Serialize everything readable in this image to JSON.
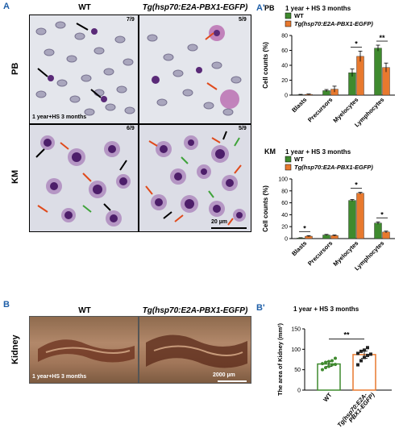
{
  "panel_a": {
    "label": "A",
    "col_wt": "WT",
    "col_tg": "Tg(hsp70:E2A-PBX1-EGFP)",
    "row_pb": "PB",
    "row_km": "KM",
    "frac_pb_wt": "7/9",
    "frac_pb_tg": "5/9",
    "frac_km_wt": "6/9",
    "frac_km_tg": "5/9",
    "condition": "1 year+HS 3 months",
    "scale": "20 µm"
  },
  "panel_b": {
    "label": "B",
    "col_wt": "WT",
    "col_tg": "Tg(hsp70:E2A-PBX1-EGFP)",
    "row": "Kidney",
    "condition": "1 year+HS 3 months",
    "scale": "2000 µm"
  },
  "chart_data": [
    {
      "panel": "A'",
      "label": "A'",
      "type": "bar",
      "tag": "PB",
      "title": "1 year + HS 3 months",
      "ylabel": "Cell counts (%)",
      "ylim": [
        0,
        80
      ],
      "yticks": [
        "0",
        "20",
        "40",
        "60",
        "80"
      ],
      "categories": [
        "Blasts",
        "Precursors",
        "Myelocytes",
        "Lymphocytes"
      ],
      "series": [
        {
          "name": "WT",
          "color": "#3f8a2e",
          "values": [
            0.5,
            6,
            30,
            63
          ],
          "errors": [
            0.5,
            1.5,
            5,
            4
          ]
        },
        {
          "name": "Tg(hsp70:E2A-PBX1-EGFP)",
          "color": "#e8792e",
          "values": [
            1,
            8,
            52,
            37
          ],
          "errors": [
            0.5,
            4,
            7,
            6
          ]
        }
      ],
      "significance": [
        {
          "category": "Myelocytes",
          "text": "*"
        },
        {
          "category": "Lymphocytes",
          "text": "**"
        }
      ]
    },
    {
      "panel": "KM",
      "type": "bar",
      "tag": "KM",
      "title": "1 year + HS 3 months",
      "ylabel": "Cell counts (%)",
      "ylim": [
        0,
        100
      ],
      "yticks": [
        "0",
        "20",
        "40",
        "60",
        "80",
        "100"
      ],
      "categories": [
        "Blasts",
        "Precursors",
        "Myelocytes",
        "Lymphocytes"
      ],
      "series": [
        {
          "name": "WT",
          "color": "#3f8a2e",
          "values": [
            1,
            6,
            64,
            26
          ],
          "errors": [
            0.5,
            1,
            1.5,
            2
          ]
        },
        {
          "name": "Tg(hsp70:E2A-PBX1-EGFP)",
          "color": "#e8792e",
          "values": [
            4,
            5,
            76,
            11
          ],
          "errors": [
            1,
            1,
            1.5,
            1.5
          ]
        }
      ],
      "significance": [
        {
          "category": "Blasts",
          "text": "*"
        },
        {
          "category": "Myelocytes",
          "text": "*"
        },
        {
          "category": "Lymphocytes",
          "text": "*"
        }
      ]
    },
    {
      "panel": "B'",
      "label": "B'",
      "type": "bar",
      "title": "1 year + HS 3 months",
      "ylabel": "The area of Kidney (mm²)",
      "ylim": [
        0,
        150
      ],
      "yticks": [
        "0",
        "50",
        "100",
        "150"
      ],
      "categories": [
        "WT",
        "Tg(hsp70:E2A-PBX1-EGFP)"
      ],
      "tick_lines": [
        [
          "WT"
        ],
        [
          "Tg(hsp70:E2A-",
          "PBX1-EGFP)"
        ]
      ],
      "values": [
        64,
        87
      ],
      "errors": [
        6,
        9
      ],
      "colors": [
        "#3f8a2e",
        "#e8792e"
      ],
      "points": [
        [
          50,
          55,
          58,
          62,
          63,
          65,
          68,
          70,
          72,
          78
        ],
        [
          62,
          72,
          80,
          85,
          88,
          90,
          95,
          98,
          104
        ]
      ],
      "significance": [
        {
          "between": [
            "WT",
            "Tg(hsp70:E2A-PBX1-EGFP)"
          ],
          "text": "**"
        }
      ]
    }
  ]
}
